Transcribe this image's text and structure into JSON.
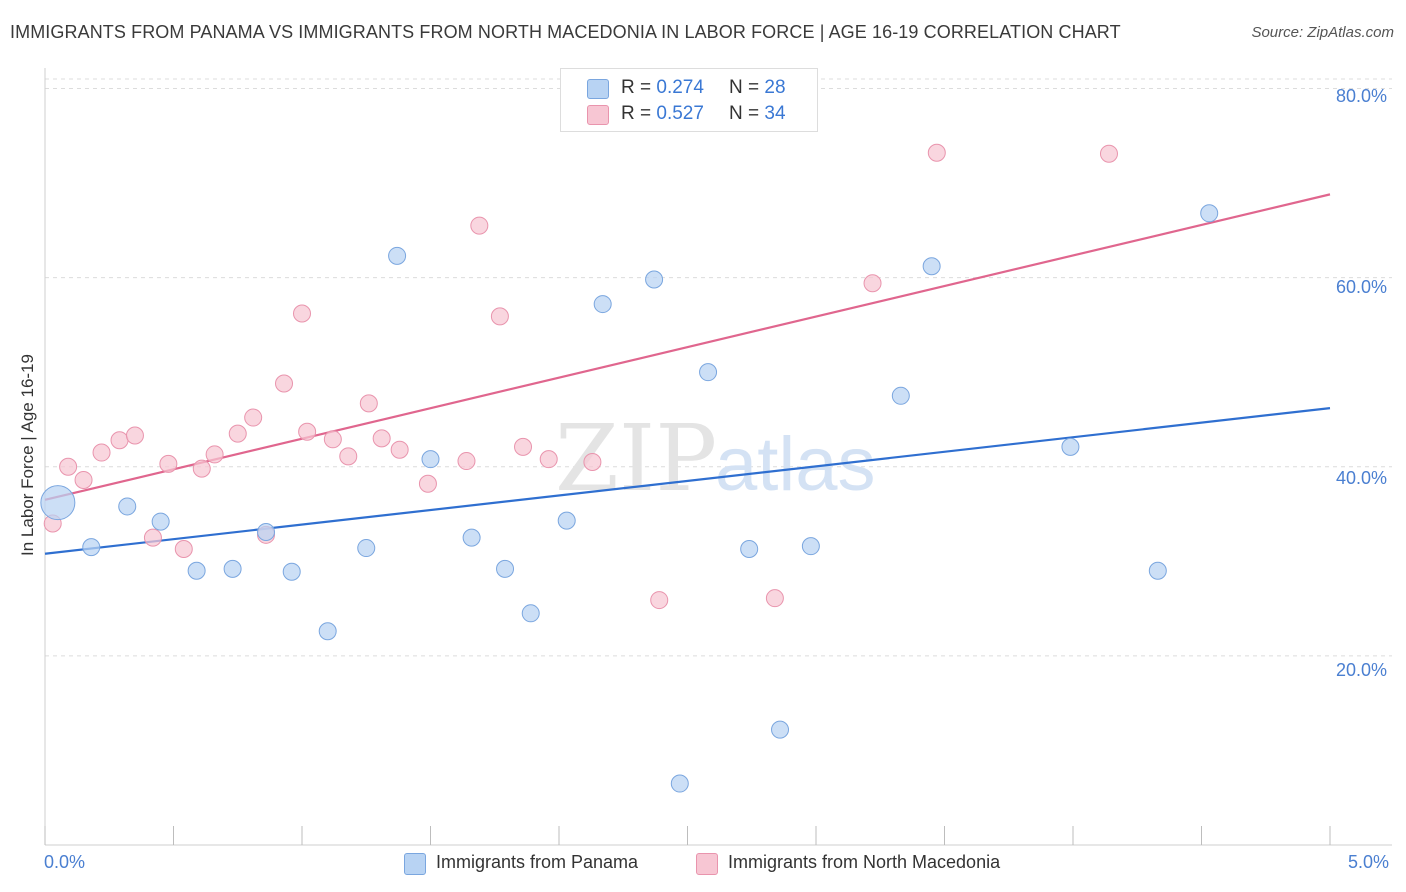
{
  "title": "IMMIGRANTS FROM PANAMA VS IMMIGRANTS FROM NORTH MACEDONIA IN LABOR FORCE | AGE 16-19 CORRELATION CHART",
  "source": "Source: ZipAtlas.com",
  "watermark": {
    "zip": "ZIP",
    "atlas": "atlas"
  },
  "legend_top": {
    "rows": [
      {
        "r_label": "R = ",
        "r_value": "0.274",
        "n_label": "N = ",
        "n_value": "28"
      },
      {
        "r_label": "R = ",
        "r_value": "0.527",
        "n_label": "N = ",
        "n_value": "34"
      }
    ]
  },
  "legend_bottom": [
    {
      "label": "Immigrants from Panama"
    },
    {
      "label": "Immigrants from North Macedonia"
    }
  ],
  "colors": {
    "panama_fill": "#b8d3f3",
    "panama_stroke": "#7aa6df",
    "panama_line": "#2f6fd0",
    "macedonia_fill": "#f7c6d3",
    "macedonia_stroke": "#e994ad",
    "macedonia_line": "#e0668e",
    "grid": "#dcdcdc",
    "tick_text": "#4a7fd1"
  },
  "chart_data": {
    "type": "scatter",
    "title": "IMMIGRANTS FROM PANAMA VS IMMIGRANTS FROM NORTH MACEDONIA IN LABOR FORCE | AGE 16-19 CORRELATION CHART",
    "xlabel": "",
    "ylabel": "In Labor Force | Age 16-19",
    "xlim": [
      0,
      5
    ],
    "ylim": [
      0,
      81
    ],
    "x_tick_labels": [
      "0.0%",
      "5.0%"
    ],
    "y_ticks": [
      20,
      40,
      60,
      80
    ],
    "y_tick_labels": [
      "20.0%",
      "40.0%",
      "60.0%",
      "80.0%"
    ],
    "grid": true,
    "legend_position": "top-center",
    "series": [
      {
        "name": "Immigrants from Panama",
        "R": 0.274,
        "N": 28,
        "trend": {
          "x": [
            0,
            5
          ],
          "y": [
            30.8,
            46.2
          ]
        },
        "points": [
          {
            "x": 0.05,
            "y": 36.2,
            "big": true
          },
          {
            "x": 0.18,
            "y": 31.5
          },
          {
            "x": 0.32,
            "y": 35.8
          },
          {
            "x": 0.45,
            "y": 34.2
          },
          {
            "x": 0.59,
            "y": 29.0
          },
          {
            "x": 0.73,
            "y": 29.2
          },
          {
            "x": 0.86,
            "y": 33.1
          },
          {
            "x": 0.96,
            "y": 28.9
          },
          {
            "x": 1.1,
            "y": 22.6
          },
          {
            "x": 1.25,
            "y": 31.4
          },
          {
            "x": 1.37,
            "y": 62.3
          },
          {
            "x": 1.5,
            "y": 40.8
          },
          {
            "x": 1.66,
            "y": 32.5
          },
          {
            "x": 1.79,
            "y": 29.2
          },
          {
            "x": 1.89,
            "y": 24.5
          },
          {
            "x": 2.03,
            "y": 34.3
          },
          {
            "x": 2.17,
            "y": 57.2
          },
          {
            "x": 2.37,
            "y": 59.8
          },
          {
            "x": 2.47,
            "y": 6.5
          },
          {
            "x": 2.58,
            "y": 50.0
          },
          {
            "x": 2.74,
            "y": 31.3
          },
          {
            "x": 2.86,
            "y": 12.2
          },
          {
            "x": 2.98,
            "y": 31.6
          },
          {
            "x": 3.33,
            "y": 47.5
          },
          {
            "x": 3.45,
            "y": 61.2
          },
          {
            "x": 3.99,
            "y": 42.1
          },
          {
            "x": 4.53,
            "y": 66.8
          },
          {
            "x": 4.33,
            "y": 29.0
          }
        ]
      },
      {
        "name": "Immigrants from North Macedonia",
        "R": 0.527,
        "N": 34,
        "trend": {
          "x": [
            0,
            5
          ],
          "y": [
            36.5,
            68.8
          ]
        },
        "points": [
          {
            "x": 0.03,
            "y": 34.0
          },
          {
            "x": 0.09,
            "y": 40.0
          },
          {
            "x": 0.15,
            "y": 38.6
          },
          {
            "x": 0.22,
            "y": 41.5
          },
          {
            "x": 0.29,
            "y": 42.8
          },
          {
            "x": 0.35,
            "y": 43.3
          },
          {
            "x": 0.42,
            "y": 32.5
          },
          {
            "x": 0.48,
            "y": 40.3
          },
          {
            "x": 0.54,
            "y": 31.3
          },
          {
            "x": 0.61,
            "y": 39.8
          },
          {
            "x": 0.66,
            "y": 41.3
          },
          {
            "x": 0.75,
            "y": 43.5
          },
          {
            "x": 0.81,
            "y": 45.2
          },
          {
            "x": 0.86,
            "y": 32.8
          },
          {
            "x": 0.93,
            "y": 48.8
          },
          {
            "x": 1.0,
            "y": 56.2
          },
          {
            "x": 1.02,
            "y": 43.7
          },
          {
            "x": 1.12,
            "y": 42.9
          },
          {
            "x": 1.18,
            "y": 41.1
          },
          {
            "x": 1.26,
            "y": 46.7
          },
          {
            "x": 1.31,
            "y": 43.0
          },
          {
            "x": 1.38,
            "y": 41.8
          },
          {
            "x": 1.49,
            "y": 38.2
          },
          {
            "x": 1.69,
            "y": 65.5
          },
          {
            "x": 1.77,
            "y": 55.9
          },
          {
            "x": 1.86,
            "y": 42.1
          },
          {
            "x": 1.96,
            "y": 40.8
          },
          {
            "x": 2.13,
            "y": 40.5
          },
          {
            "x": 2.39,
            "y": 25.9
          },
          {
            "x": 2.84,
            "y": 26.1
          },
          {
            "x": 3.22,
            "y": 59.4
          },
          {
            "x": 3.47,
            "y": 73.2
          },
          {
            "x": 4.14,
            "y": 73.1
          },
          {
            "x": 1.64,
            "y": 40.6
          }
        ]
      }
    ]
  }
}
